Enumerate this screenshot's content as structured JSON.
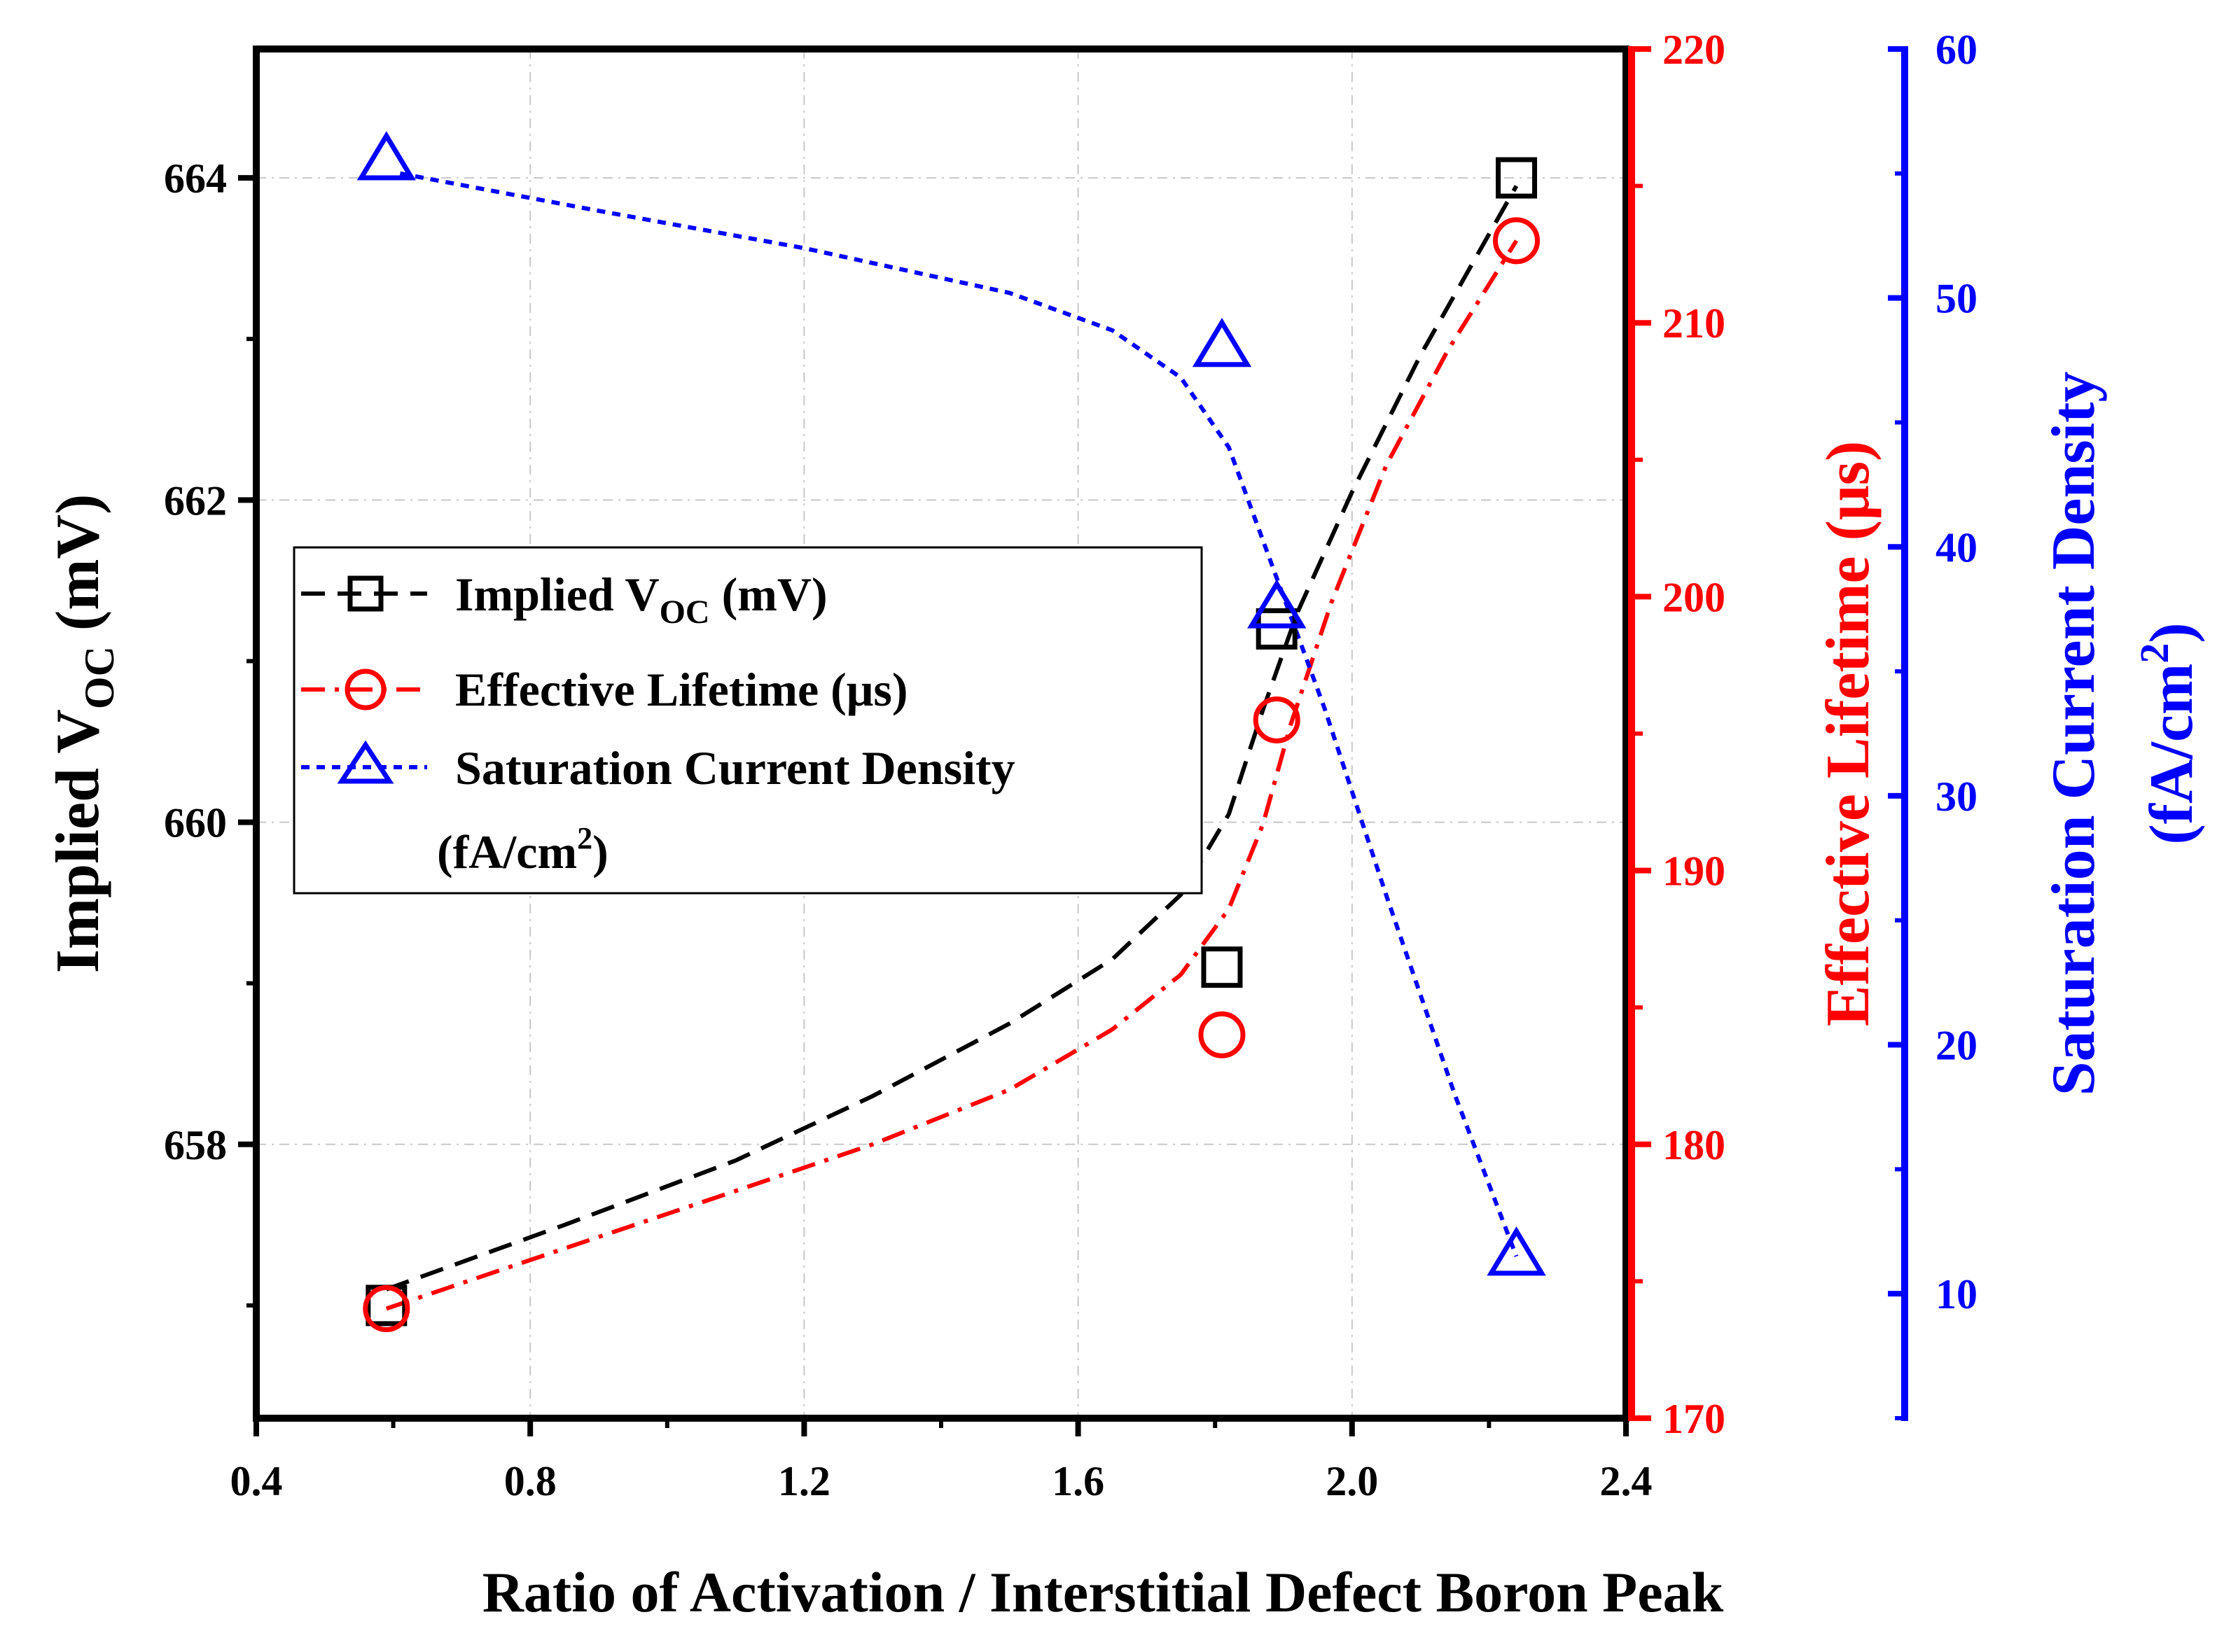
{
  "chart_data": {
    "type": "scatter",
    "xlabel": "Ratio of Activation / Interstitial Defect Boron Peak",
    "xlim": [
      0.4,
      2.4
    ],
    "x_ticks": [
      "0.4",
      "0.8",
      "1.2",
      "1.6",
      "2.0",
      "2.4"
    ],
    "y_axes": [
      {
        "id": "voc",
        "label_main": "Implied V",
        "label_sub": "OC",
        "label_unit": " (mV)",
        "ylim": [
          656.3,
          664.8
        ],
        "ticks": [
          "658",
          "660",
          "662",
          "664"
        ],
        "color": "#000000"
      },
      {
        "id": "life",
        "label": "Effective Lifetime (μs)",
        "ylim": [
          170,
          220
        ],
        "ticks": [
          "170",
          "180",
          "190",
          "200",
          "210",
          "220"
        ],
        "color": "#ff0000"
      },
      {
        "id": "j0",
        "label_line1": "Saturation Current Density",
        "label_line2_pre": "(fA/cm",
        "label_line2_sup": "2",
        "label_line2_post": ")",
        "ylim": [
          5,
          60
        ],
        "ticks": [
          "10",
          "20",
          "30",
          "40",
          "50",
          "60"
        ],
        "color": "#0000ff"
      }
    ],
    "series": [
      {
        "name": "Implied VOC (mV)",
        "axis": "voc",
        "marker": "square",
        "color": "#000000",
        "x": [
          0.59,
          1.81,
          1.89,
          2.24
        ],
        "y": [
          657.0,
          659.1,
          661.2,
          664.0
        ],
        "fit": [
          [
            0.59,
            657.1
          ],
          [
            0.85,
            657.5
          ],
          [
            1.1,
            657.9
          ],
          [
            1.3,
            658.3
          ],
          [
            1.5,
            658.75
          ],
          [
            1.65,
            659.15
          ],
          [
            1.75,
            659.55
          ],
          [
            1.82,
            660.05
          ],
          [
            1.87,
            660.7
          ],
          [
            1.92,
            661.3
          ],
          [
            2.0,
            662.05
          ],
          [
            2.1,
            662.9
          ],
          [
            2.24,
            663.95
          ]
        ]
      },
      {
        "name": "Effective Lifetime (μs)",
        "axis": "life",
        "marker": "circle",
        "color": "#ff0000",
        "x": [
          0.59,
          1.81,
          1.89,
          2.24
        ],
        "y": [
          174.0,
          184.0,
          195.5,
          213.0
        ],
        "fit": [
          [
            0.59,
            174.0
          ],
          [
            0.85,
            176.2
          ],
          [
            1.1,
            178.3
          ],
          [
            1.3,
            180.0
          ],
          [
            1.5,
            182.0
          ],
          [
            1.65,
            184.2
          ],
          [
            1.75,
            186.2
          ],
          [
            1.82,
            188.6
          ],
          [
            1.87,
            191.7
          ],
          [
            1.91,
            195.3
          ],
          [
            1.97,
            199.8
          ],
          [
            2.05,
            204.8
          ],
          [
            2.14,
            209.0
          ],
          [
            2.24,
            213.0
          ]
        ]
      },
      {
        "name": "Saturation Current Density (fA/cm2)",
        "axis": "j0",
        "marker": "triangle",
        "color": "#0000ff",
        "x": [
          0.59,
          1.81,
          1.89,
          2.24
        ],
        "y": [
          55.5,
          48.0,
          37.5,
          11.5
        ],
        "fit": [
          [
            0.61,
            55.0
          ],
          [
            0.9,
            53.5
          ],
          [
            1.2,
            52.0
          ],
          [
            1.5,
            50.2
          ],
          [
            1.65,
            48.7
          ],
          [
            1.75,
            46.8
          ],
          [
            1.82,
            44.0
          ],
          [
            1.86,
            41.0
          ],
          [
            1.9,
            38.0
          ],
          [
            1.96,
            33.5
          ],
          [
            2.05,
            26.0
          ],
          [
            2.15,
            18.0
          ],
          [
            2.24,
            11.5
          ]
        ]
      }
    ],
    "legend": {
      "position": "middle-left",
      "entries": [
        {
          "pre": "Implied V",
          "sub": "OC",
          "post": " (mV)"
        },
        {
          "text": "Effective Lifetime (μs)"
        },
        {
          "line1": "Saturation Current Density",
          "line2_pre": "(fA/cm",
          "line2_sup": "2",
          "line2_post": ")"
        }
      ]
    },
    "grid": true
  }
}
